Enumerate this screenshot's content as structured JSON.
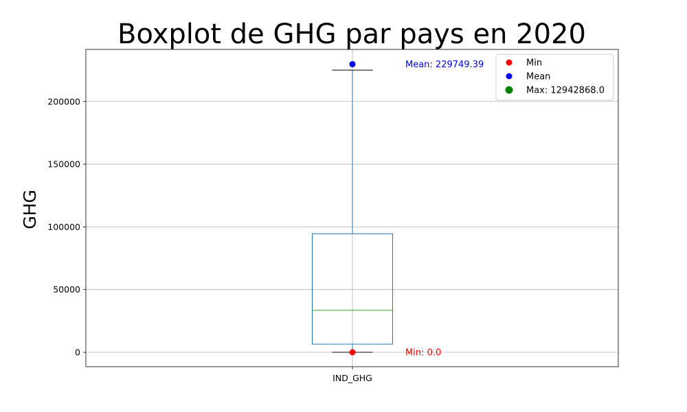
{
  "chart_data": {
    "type": "box",
    "title": "Boxplot de GHG par pays en 2020",
    "xlabel": "",
    "ylabel": "GHG",
    "categories": [
      "IND_GHG"
    ],
    "ylim": [
      -11500,
      241500
    ],
    "yticks": [
      0,
      50000,
      100000,
      150000,
      200000
    ],
    "grid": true,
    "box": {
      "whisker_low": 0,
      "q1": 6500,
      "median": 33500,
      "q3": 94500,
      "whisker_high": 225000
    },
    "markers": [
      {
        "name": "Min",
        "value": 0,
        "color": "#ff0000"
      },
      {
        "name": "Mean",
        "value": 229749.39,
        "color": "#0000ff"
      }
    ],
    "annotations": [
      {
        "text": "Mean: 229749.39",
        "value": 229749.39,
        "color": "#0000ff"
      },
      {
        "text": "Min: 0.0",
        "value": 0,
        "color": "#ff0000"
      }
    ],
    "legend": {
      "position": "top-right",
      "entries": [
        {
          "label": "Min",
          "color": "#ff0000"
        },
        {
          "label": "Mean",
          "color": "#0000ff"
        },
        {
          "label": "Max: 12942868.0",
          "color": "#008000"
        }
      ]
    },
    "colors": {
      "box": "#1f77b4",
      "median": "#2ca02c",
      "cap": "#000000",
      "grid": "#b0b0b0"
    }
  }
}
